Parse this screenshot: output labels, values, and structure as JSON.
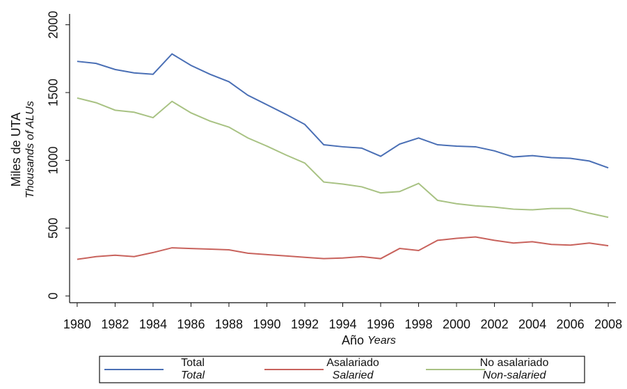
{
  "chart_data": {
    "type": "line",
    "y_label": "Miles de UTA",
    "y_label_en": "Thousands of ALUs",
    "x_label": "Año",
    "x_label_en": "Years",
    "x": [
      1980,
      1981,
      1982,
      1983,
      1984,
      1985,
      1986,
      1987,
      1988,
      1989,
      1990,
      1991,
      1992,
      1993,
      1994,
      1995,
      1996,
      1997,
      1998,
      1999,
      2000,
      2001,
      2002,
      2003,
      2004,
      2005,
      2006,
      2007,
      2008
    ],
    "series": [
      {
        "name": "Total",
        "name_en": "Total",
        "color": "#4a6fb5",
        "values": [
          1730,
          1715,
          1670,
          1645,
          1635,
          1785,
          1700,
          1635,
          1580,
          1480,
          1410,
          1340,
          1265,
          1115,
          1100,
          1090,
          1030,
          1120,
          1165,
          1115,
          1105,
          1100,
          1070,
          1025,
          1035,
          1020,
          1015,
          995,
          945
        ]
      },
      {
        "name": "Asalariado",
        "name_en": "Salaried",
        "color": "#c8625c",
        "values": [
          270,
          290,
          300,
          290,
          320,
          355,
          350,
          345,
          340,
          315,
          305,
          295,
          285,
          275,
          280,
          290,
          275,
          350,
          335,
          410,
          425,
          435,
          410,
          390,
          400,
          380,
          375,
          390,
          370
        ]
      },
      {
        "name": "No asalariado",
        "name_en": "Non-salaried",
        "color": "#a8c283",
        "values": [
          1460,
          1425,
          1370,
          1355,
          1315,
          1435,
          1350,
          1290,
          1245,
          1165,
          1105,
          1040,
          980,
          840,
          825,
          805,
          760,
          770,
          830,
          705,
          680,
          665,
          655,
          640,
          635,
          645,
          645,
          610,
          580
        ]
      }
    ],
    "xlim": [
      1979.6,
      2008.4
    ],
    "ylim": [
      -50,
      2080
    ],
    "xticks": [
      1980,
      1982,
      1984,
      1986,
      1988,
      1990,
      1992,
      1994,
      1996,
      1998,
      2000,
      2002,
      2004,
      2006,
      2008
    ],
    "yticks": [
      0,
      500,
      1000,
      1500,
      2000
    ],
    "grid": false,
    "legend": "bottom"
  }
}
